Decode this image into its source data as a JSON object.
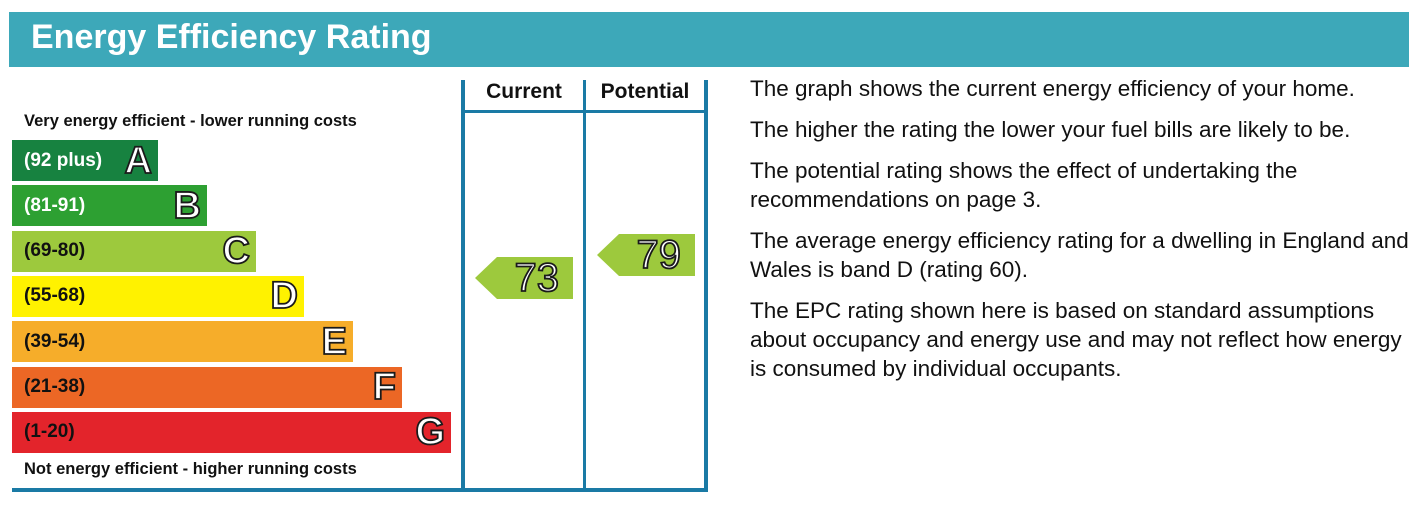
{
  "header": {
    "title": "Energy Efficiency Rating"
  },
  "chart_data": {
    "type": "bar",
    "top_caption": "Very energy efficient - lower running costs",
    "bottom_caption": "Not energy efficient - higher running costs",
    "columns": [
      "Current",
      "Potential"
    ],
    "bands": [
      {
        "letter": "A",
        "range": "(92 plus)",
        "min": 92,
        "max": 100,
        "color": "#178240",
        "text_color": "#ffffff"
      },
      {
        "letter": "B",
        "range": "(81-91)",
        "min": 81,
        "max": 91,
        "color": "#2da032",
        "text_color": "#ffffff"
      },
      {
        "letter": "C",
        "range": "(69-80)",
        "min": 69,
        "max": 80,
        "color": "#9dc93d",
        "text_color": "#111111"
      },
      {
        "letter": "D",
        "range": "(55-68)",
        "min": 55,
        "max": 68,
        "color": "#fff200",
        "text_color": "#111111"
      },
      {
        "letter": "E",
        "range": "(39-54)",
        "min": 39,
        "max": 54,
        "color": "#f6ad2a",
        "text_color": "#111111"
      },
      {
        "letter": "F",
        "range": "(21-38)",
        "min": 21,
        "max": 38,
        "color": "#ec6725",
        "text_color": "#111111"
      },
      {
        "letter": "G",
        "range": "(1-20)",
        "min": 1,
        "max": 20,
        "color": "#e3242b",
        "text_color": "#111111"
      }
    ],
    "current": {
      "value": 73,
      "band": "C",
      "color": "#9dc93d"
    },
    "potential": {
      "value": 79,
      "band": "C",
      "color": "#9dc93d"
    }
  },
  "description": [
    "The graph shows the current energy efficiency of your home.",
    "The higher the rating the lower your fuel bills are likely to be.",
    "The potential rating shows the effect of undertaking the recommendations on page 3.",
    "The average energy efficiency rating for a dwelling in England and Wales is band D (rating 60).",
    "The EPC rating shown here is based on standard assumptions about occupancy and energy use and may not reflect how energy is consumed by individual occupants."
  ]
}
